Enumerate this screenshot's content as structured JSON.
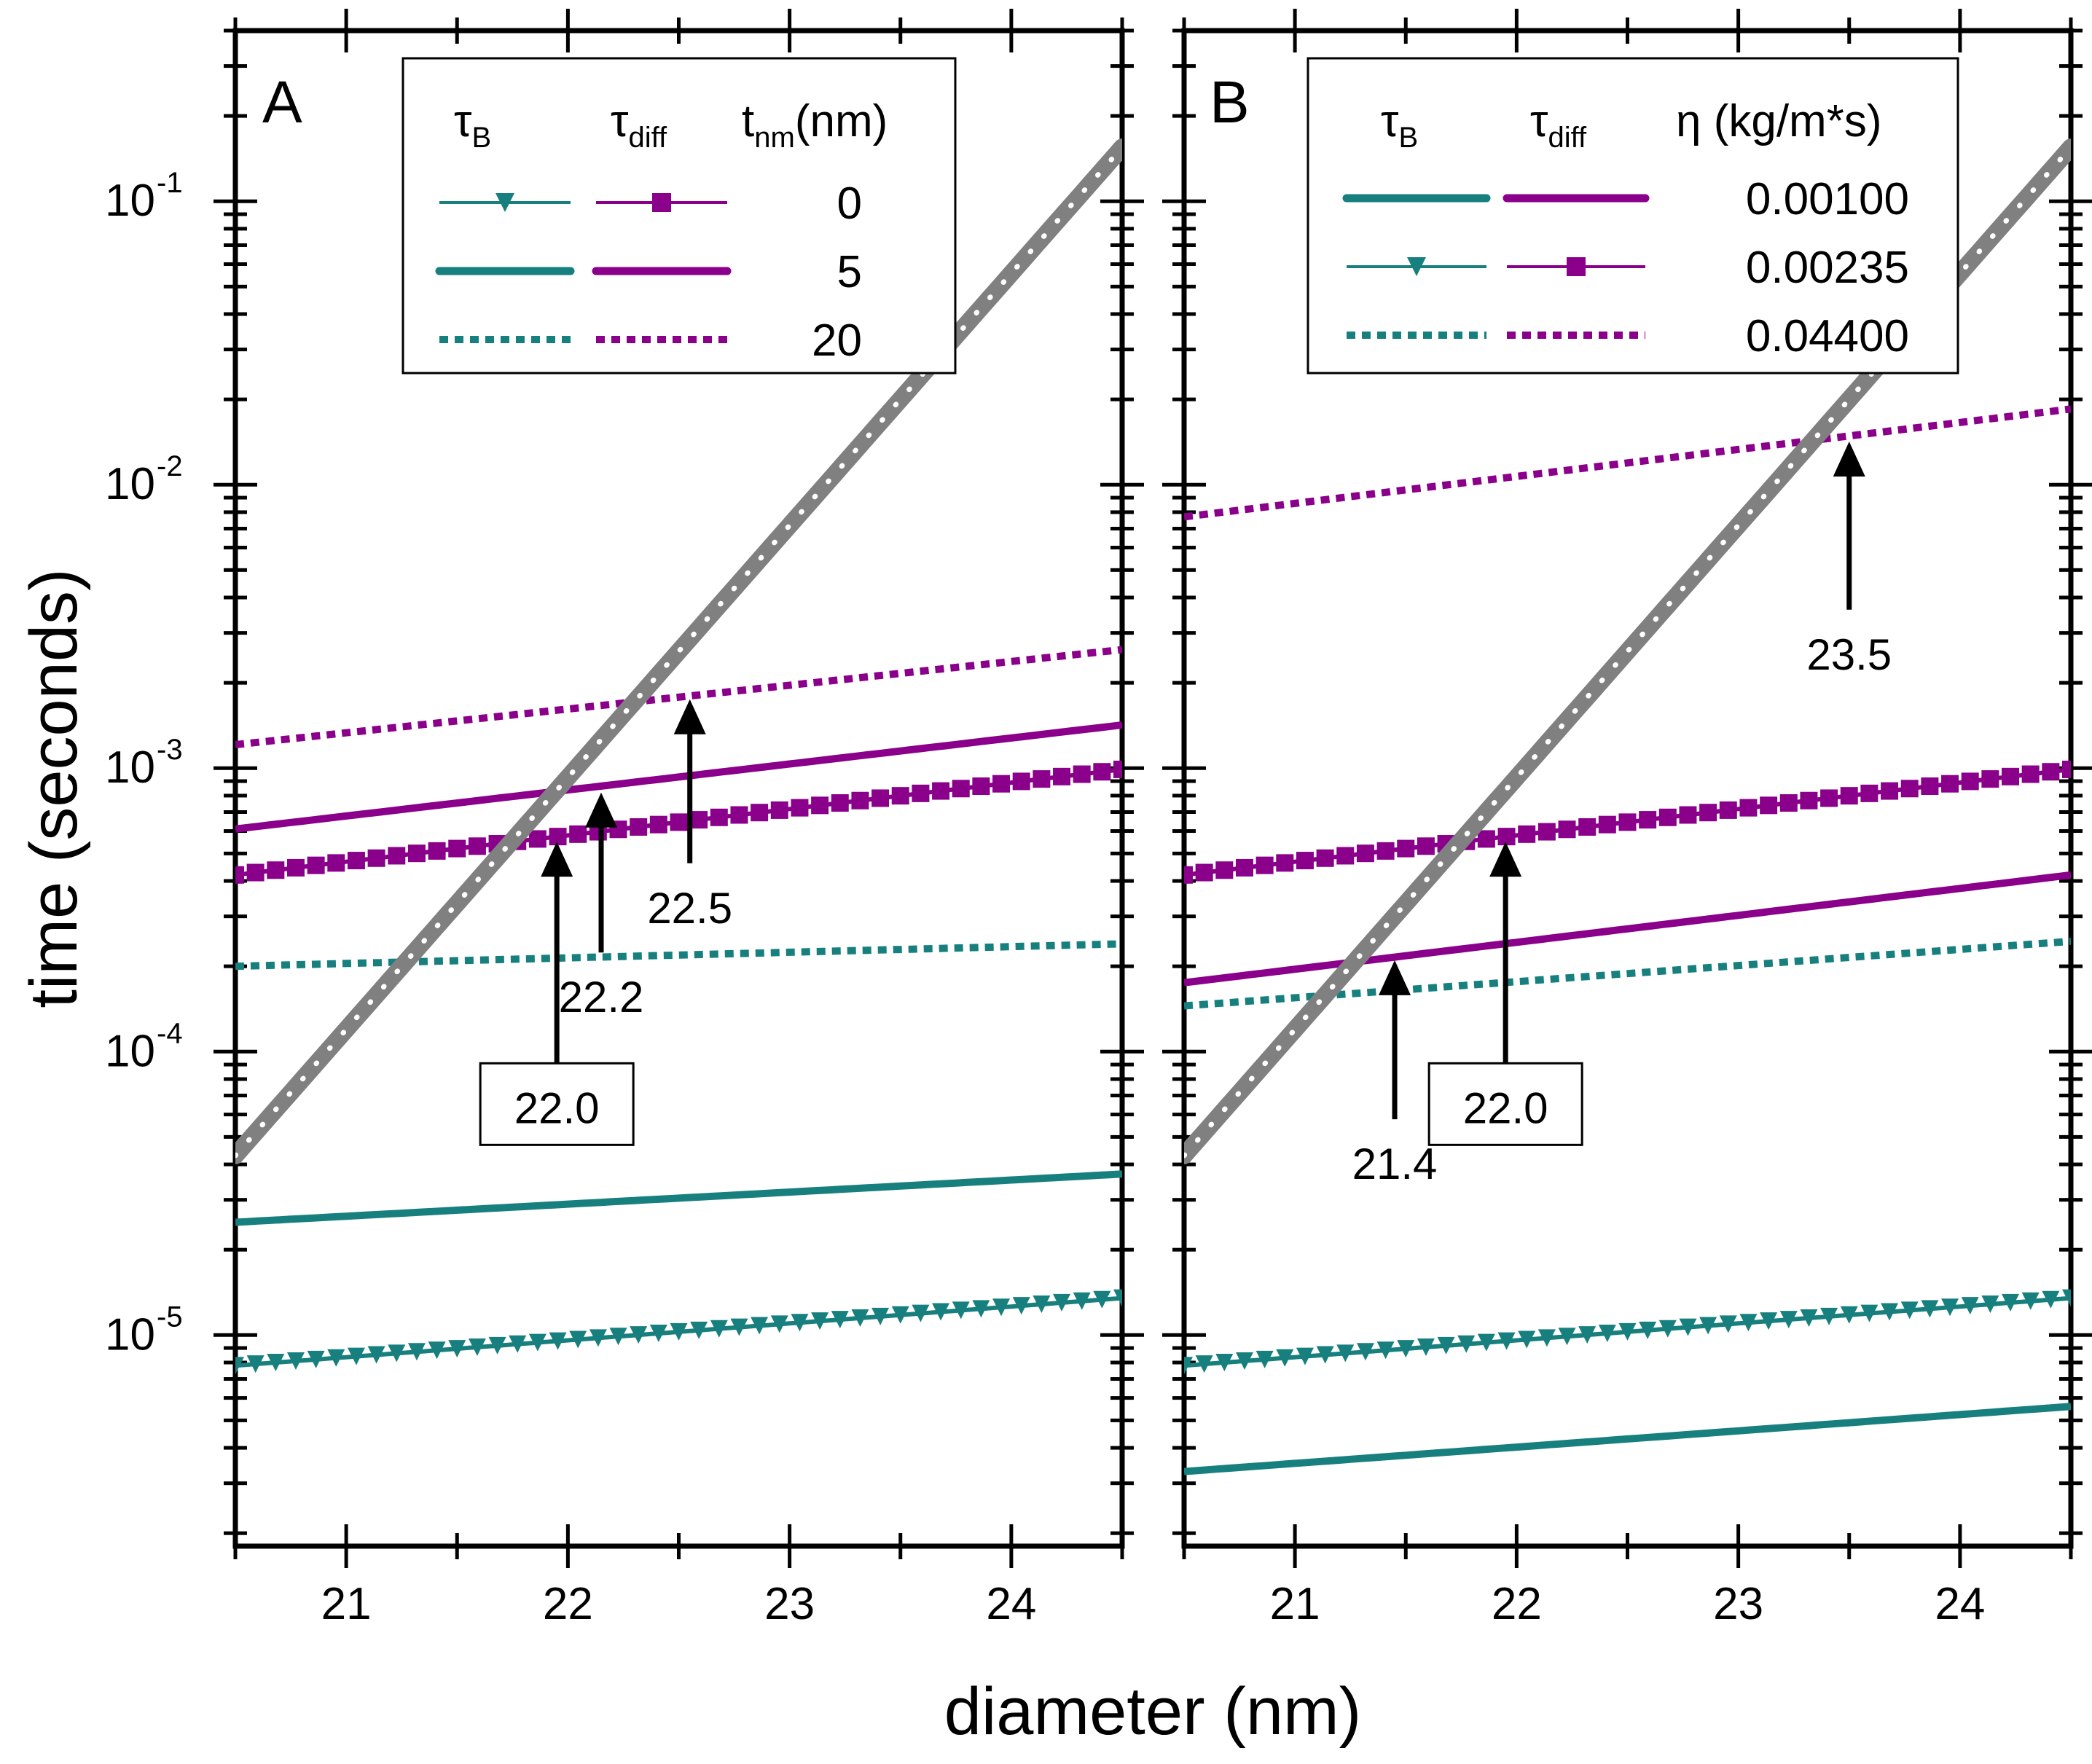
{
  "figure": {
    "ylabel": "time (seconds)",
    "xlabel": "diameter (nm)"
  },
  "chart_data": [
    {
      "type": "line",
      "panel": "A",
      "title": "",
      "xlabel": "diameter (nm)",
      "ylabel": "time (seconds)",
      "yscale": "log",
      "xlim": [
        20.5,
        24.5
      ],
      "ylim": [
        1.8e-06,
        0.4
      ],
      "x_ticks": [
        21,
        22,
        23,
        24
      ],
      "x_tick_labels": [
        "21",
        "22",
        "23",
        "24"
      ],
      "y_ticks": [
        {
          "value": 0.1,
          "base": "10",
          "exp": "-1"
        },
        {
          "value": 0.01,
          "base": "10",
          "exp": "-2"
        },
        {
          "value": 0.001,
          "base": "10",
          "exp": "-3"
        },
        {
          "value": 0.0001,
          "base": "10",
          "exp": "-4"
        },
        {
          "value": 1e-05,
          "base": "10",
          "exp": "-5"
        }
      ],
      "legend": {
        "position": "top",
        "col_tau_b": "τ",
        "col_tau_b_sub": "B",
        "col_tau_diff": "τ",
        "col_tau_diff_sub": "diff",
        "param_head": "t",
        "param_head_sub": "nm",
        "param_head_tail": "(nm)",
        "rows": [
          {
            "value": "0",
            "style": "marker"
          },
          {
            "value": "5",
            "style": "thick"
          },
          {
            "value": "20",
            "style": "dotted"
          }
        ]
      },
      "series": [
        {
          "name": "τ_B, t_nm = 0",
          "kind": "tauB",
          "style": "marker",
          "color": "#17807E",
          "x": [
            20.5,
            24.5
          ],
          "y": [
            7.8e-06,
            1.35e-05
          ]
        },
        {
          "name": "τ_B, t_nm = 5",
          "kind": "tauB",
          "style": "thick",
          "color": "#17807E",
          "x": [
            20.5,
            24.5
          ],
          "y": [
            2.5e-05,
            3.7e-05
          ]
        },
        {
          "name": "τ_B, t_nm = 20",
          "kind": "tauB",
          "style": "dotted",
          "color": "#17807E",
          "x": [
            20.5,
            24.5
          ],
          "y": [
            0.0002,
            0.00024
          ]
        },
        {
          "name": "τ_diff, t_nm = 0",
          "kind": "tauDiff",
          "style": "marker",
          "color": "#8B008B",
          "x": [
            20.5,
            24.5
          ],
          "y": [
            0.00042,
            0.00099
          ]
        },
        {
          "name": "τ_diff, t_nm = 5",
          "kind": "tauDiff",
          "style": "thick",
          "color": "#8B008B",
          "x": [
            20.5,
            24.5
          ],
          "y": [
            0.00061,
            0.00142
          ]
        },
        {
          "name": "τ_diff, t_nm = 20",
          "kind": "tauDiff",
          "style": "dotted",
          "color": "#8B008B",
          "x": [
            20.5,
            24.5
          ],
          "y": [
            0.00121,
            0.00262
          ]
        },
        {
          "name": "reference",
          "kind": "reference",
          "style": "gray",
          "color": "#808080",
          "x": [
            20.5,
            24.5
          ],
          "y": [
            4.3e-05,
            0.155
          ]
        }
      ],
      "annotations": [
        {
          "text": "22.0",
          "x": 21.95,
          "y": 0.00055,
          "text_y": 6.3e-05,
          "boxed": true
        },
        {
          "text": "22.2",
          "x": 22.15,
          "y": 0.00082,
          "text_y": 0.000155,
          "boxed": false
        },
        {
          "text": "22.5",
          "x": 22.55,
          "y": 0.00175,
          "text_y": 0.00032,
          "boxed": false
        }
      ]
    },
    {
      "type": "line",
      "panel": "B",
      "title": "",
      "xlabel": "diameter (nm)",
      "ylabel": "time (seconds)",
      "yscale": "log",
      "xlim": [
        20.5,
        24.5
      ],
      "ylim": [
        1.8e-06,
        0.4
      ],
      "x_ticks": [
        21,
        22,
        23,
        24
      ],
      "x_tick_labels": [
        "21",
        "22",
        "23",
        "24"
      ],
      "y_ticks": [
        {
          "value": 0.1,
          "base": "",
          "exp": ""
        },
        {
          "value": 0.01,
          "base": "",
          "exp": ""
        },
        {
          "value": 0.001,
          "base": "",
          "exp": ""
        },
        {
          "value": 0.0001,
          "base": "",
          "exp": ""
        },
        {
          "value": 1e-05,
          "base": "",
          "exp": ""
        }
      ],
      "legend": {
        "position": "top",
        "col_tau_b": "τ",
        "col_tau_b_sub": "B",
        "col_tau_diff": "τ",
        "col_tau_diff_sub": "diff",
        "param_head": "η (kg/m*s)",
        "param_head_sub": "",
        "param_head_tail": "",
        "rows": [
          {
            "value": "0.00100",
            "style": "thick"
          },
          {
            "value": "0.00235",
            "style": "marker"
          },
          {
            "value": "0.04400",
            "style": "dotted"
          }
        ]
      },
      "series": [
        {
          "name": "τ_B, η = 0.00100",
          "kind": "tauB",
          "style": "thick",
          "color": "#17807E",
          "x": [
            20.5,
            24.5
          ],
          "y": [
            3.3e-06,
            5.6e-06
          ]
        },
        {
          "name": "τ_B, η = 0.00235",
          "kind": "tauB",
          "style": "marker",
          "color": "#17807E",
          "x": [
            20.5,
            24.5
          ],
          "y": [
            7.8e-06,
            1.35e-05
          ]
        },
        {
          "name": "τ_B, η = 0.04400",
          "kind": "tauB",
          "style": "dotted",
          "color": "#17807E",
          "x": [
            20.5,
            24.5
          ],
          "y": [
            0.000145,
            0.000245
          ]
        },
        {
          "name": "τ_diff, η = 0.00100",
          "kind": "tauDiff",
          "style": "thick",
          "color": "#8B008B",
          "x": [
            20.5,
            24.5
          ],
          "y": [
            0.000175,
            0.00042
          ]
        },
        {
          "name": "τ_diff, η = 0.00235",
          "kind": "tauDiff",
          "style": "marker",
          "color": "#8B008B",
          "x": [
            20.5,
            24.5
          ],
          "y": [
            0.00042,
            0.00099
          ]
        },
        {
          "name": "τ_diff, η = 0.04400",
          "kind": "tauDiff",
          "style": "dotted",
          "color": "#8B008B",
          "x": [
            20.5,
            24.5
          ],
          "y": [
            0.0077,
            0.0185
          ]
        },
        {
          "name": "reference",
          "kind": "reference",
          "style": "gray",
          "color": "#808080",
          "x": [
            20.5,
            24.5
          ],
          "y": [
            4.3e-05,
            0.155
          ]
        }
      ],
      "annotations": [
        {
          "text": "21.4",
          "x": 21.45,
          "y": 0.00021,
          "text_y": 4e-05,
          "boxed": false
        },
        {
          "text": "22.0",
          "x": 21.95,
          "y": 0.00055,
          "text_y": 6.3e-05,
          "boxed": true
        },
        {
          "text": "23.5",
          "x": 23.5,
          "y": 0.0142,
          "text_y": 0.00251,
          "boxed": false
        }
      ]
    }
  ]
}
